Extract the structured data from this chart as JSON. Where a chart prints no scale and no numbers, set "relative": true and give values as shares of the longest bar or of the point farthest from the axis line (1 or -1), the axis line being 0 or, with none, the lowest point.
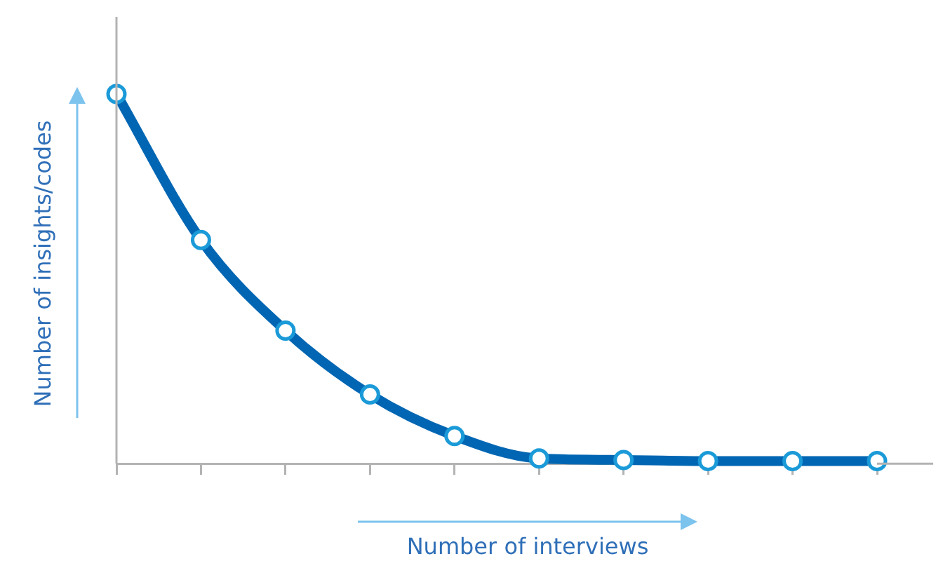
{
  "chart_data": {
    "type": "line",
    "xlabel": "Number of interviews",
    "ylabel": "Number of insights/codes",
    "relative": true,
    "categories": [
      null,
      null,
      null,
      null,
      null,
      null,
      null,
      null,
      null,
      null
    ],
    "series": [
      {
        "color": "#0066b3",
        "values": [
          1,
          0.605,
          0.36,
          0.187,
          0.075,
          0.014,
          0.01,
          0.007,
          0.007,
          0.007
        ]
      }
    ],
    "marker": "circle",
    "grid": false,
    "legend": false
  }
}
